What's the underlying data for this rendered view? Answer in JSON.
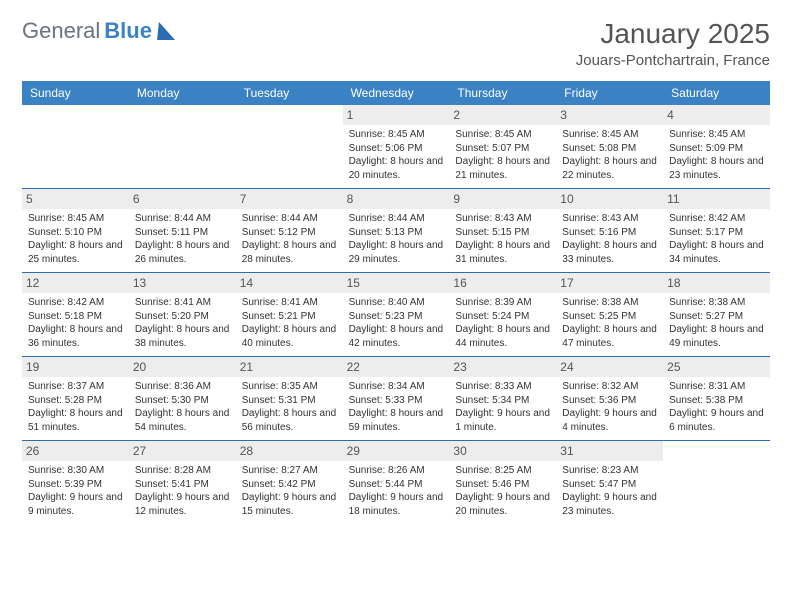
{
  "logo": {
    "text1": "General",
    "text2": "Blue"
  },
  "title": "January 2025",
  "location": "Jouars-Pontchartrain, France",
  "colors": {
    "header_bg": "#3b82c4",
    "header_text": "#ffffff",
    "row_divider": "#2a6db0",
    "daynum_bg": "#ededed",
    "text": "#333333",
    "logo_gray": "#6b7280",
    "logo_blue": "#3b82c4"
  },
  "daysOfWeek": [
    "Sunday",
    "Monday",
    "Tuesday",
    "Wednesday",
    "Thursday",
    "Friday",
    "Saturday"
  ],
  "weeks": [
    [
      {
        "n": "",
        "sunrise": "",
        "sunset": "",
        "daylight": ""
      },
      {
        "n": "",
        "sunrise": "",
        "sunset": "",
        "daylight": ""
      },
      {
        "n": "",
        "sunrise": "",
        "sunset": "",
        "daylight": ""
      },
      {
        "n": "1",
        "sunrise": "8:45 AM",
        "sunset": "5:06 PM",
        "daylight": "8 hours and 20 minutes."
      },
      {
        "n": "2",
        "sunrise": "8:45 AM",
        "sunset": "5:07 PM",
        "daylight": "8 hours and 21 minutes."
      },
      {
        "n": "3",
        "sunrise": "8:45 AM",
        "sunset": "5:08 PM",
        "daylight": "8 hours and 22 minutes."
      },
      {
        "n": "4",
        "sunrise": "8:45 AM",
        "sunset": "5:09 PM",
        "daylight": "8 hours and 23 minutes."
      }
    ],
    [
      {
        "n": "5",
        "sunrise": "8:45 AM",
        "sunset": "5:10 PM",
        "daylight": "8 hours and 25 minutes."
      },
      {
        "n": "6",
        "sunrise": "8:44 AM",
        "sunset": "5:11 PM",
        "daylight": "8 hours and 26 minutes."
      },
      {
        "n": "7",
        "sunrise": "8:44 AM",
        "sunset": "5:12 PM",
        "daylight": "8 hours and 28 minutes."
      },
      {
        "n": "8",
        "sunrise": "8:44 AM",
        "sunset": "5:13 PM",
        "daylight": "8 hours and 29 minutes."
      },
      {
        "n": "9",
        "sunrise": "8:43 AM",
        "sunset": "5:15 PM",
        "daylight": "8 hours and 31 minutes."
      },
      {
        "n": "10",
        "sunrise": "8:43 AM",
        "sunset": "5:16 PM",
        "daylight": "8 hours and 33 minutes."
      },
      {
        "n": "11",
        "sunrise": "8:42 AM",
        "sunset": "5:17 PM",
        "daylight": "8 hours and 34 minutes."
      }
    ],
    [
      {
        "n": "12",
        "sunrise": "8:42 AM",
        "sunset": "5:18 PM",
        "daylight": "8 hours and 36 minutes."
      },
      {
        "n": "13",
        "sunrise": "8:41 AM",
        "sunset": "5:20 PM",
        "daylight": "8 hours and 38 minutes."
      },
      {
        "n": "14",
        "sunrise": "8:41 AM",
        "sunset": "5:21 PM",
        "daylight": "8 hours and 40 minutes."
      },
      {
        "n": "15",
        "sunrise": "8:40 AM",
        "sunset": "5:23 PM",
        "daylight": "8 hours and 42 minutes."
      },
      {
        "n": "16",
        "sunrise": "8:39 AM",
        "sunset": "5:24 PM",
        "daylight": "8 hours and 44 minutes."
      },
      {
        "n": "17",
        "sunrise": "8:38 AM",
        "sunset": "5:25 PM",
        "daylight": "8 hours and 47 minutes."
      },
      {
        "n": "18",
        "sunrise": "8:38 AM",
        "sunset": "5:27 PM",
        "daylight": "8 hours and 49 minutes."
      }
    ],
    [
      {
        "n": "19",
        "sunrise": "8:37 AM",
        "sunset": "5:28 PM",
        "daylight": "8 hours and 51 minutes."
      },
      {
        "n": "20",
        "sunrise": "8:36 AM",
        "sunset": "5:30 PM",
        "daylight": "8 hours and 54 minutes."
      },
      {
        "n": "21",
        "sunrise": "8:35 AM",
        "sunset": "5:31 PM",
        "daylight": "8 hours and 56 minutes."
      },
      {
        "n": "22",
        "sunrise": "8:34 AM",
        "sunset": "5:33 PM",
        "daylight": "8 hours and 59 minutes."
      },
      {
        "n": "23",
        "sunrise": "8:33 AM",
        "sunset": "5:34 PM",
        "daylight": "9 hours and 1 minute."
      },
      {
        "n": "24",
        "sunrise": "8:32 AM",
        "sunset": "5:36 PM",
        "daylight": "9 hours and 4 minutes."
      },
      {
        "n": "25",
        "sunrise": "8:31 AM",
        "sunset": "5:38 PM",
        "daylight": "9 hours and 6 minutes."
      }
    ],
    [
      {
        "n": "26",
        "sunrise": "8:30 AM",
        "sunset": "5:39 PM",
        "daylight": "9 hours and 9 minutes."
      },
      {
        "n": "27",
        "sunrise": "8:28 AM",
        "sunset": "5:41 PM",
        "daylight": "9 hours and 12 minutes."
      },
      {
        "n": "28",
        "sunrise": "8:27 AM",
        "sunset": "5:42 PM",
        "daylight": "9 hours and 15 minutes."
      },
      {
        "n": "29",
        "sunrise": "8:26 AM",
        "sunset": "5:44 PM",
        "daylight": "9 hours and 18 minutes."
      },
      {
        "n": "30",
        "sunrise": "8:25 AM",
        "sunset": "5:46 PM",
        "daylight": "9 hours and 20 minutes."
      },
      {
        "n": "31",
        "sunrise": "8:23 AM",
        "sunset": "5:47 PM",
        "daylight": "9 hours and 23 minutes."
      },
      {
        "n": "",
        "sunrise": "",
        "sunset": "",
        "daylight": ""
      }
    ]
  ],
  "labels": {
    "sunrise": "Sunrise:",
    "sunset": "Sunset:",
    "daylight": "Daylight:"
  }
}
